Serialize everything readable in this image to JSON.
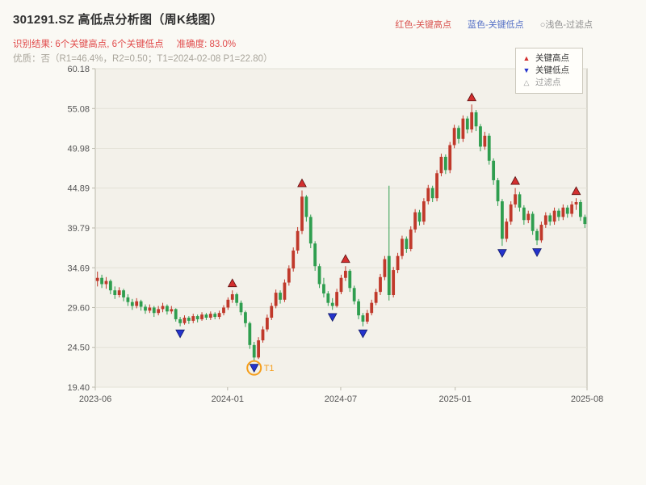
{
  "header": {
    "title": "301291.SZ 高低点分析图（周K线图）",
    "top_legend": [
      {
        "label": "红色-关键高点",
        "color": "#d9534f"
      },
      {
        "label": "蓝色-关键低点",
        "color": "#5470c6"
      },
      {
        "label": "○浅色-过滤点",
        "color": "#8f8f8f"
      }
    ],
    "result_line": "识别结果: 6个关键高点, 6个关键低点",
    "accuracy": "准确度: 83.0%",
    "quality_line": "优质：否（R1=46.4%，R2=0.50；T1=2024-02-08 P1=22.80）"
  },
  "chart_legend": {
    "high": "关键高点",
    "low": "关键低点",
    "filter": "过滤点"
  },
  "chart_data": {
    "type": "candlestick",
    "timeframe": "weekly",
    "title": "301291.SZ 高低点分析图（周K线图）",
    "ylim": [
      19.4,
      60.18
    ],
    "y_ticks": [
      19.4,
      24.5,
      29.6,
      34.69,
      39.79,
      44.89,
      49.98,
      55.08,
      60.18
    ],
    "x_ticks": [
      {
        "label": "2023-06",
        "index": 0
      },
      {
        "label": "2024-01",
        "index": 30.4
      },
      {
        "label": "2024-07",
        "index": 56.4
      },
      {
        "label": "2025-01",
        "index": 82.7
      },
      {
        "label": "2025-08",
        "index": 113
      }
    ],
    "grid": "horizontal",
    "colors": {
      "page_bg": "#faf9f4",
      "plot_bg": "#f3f1ea",
      "grid": "#e3e1d6",
      "axis": "#b9b6aa",
      "tick_text": "#555555",
      "up": "#c0392b",
      "down": "#2f9e4f",
      "marker_high": "#d32f2f",
      "marker_high_edge": "#5a0f0f",
      "marker_low": "#2433cc",
      "marker_low_edge": "#101a66",
      "filter_marker": "#9a9a9a",
      "t1": "#f59e1b"
    },
    "candles": [
      [
        33.0,
        34.2,
        32.3,
        33.4
      ],
      [
        33.4,
        33.8,
        32.1,
        32.6
      ],
      [
        32.6,
        33.5,
        32.0,
        33.0
      ],
      [
        33.0,
        33.2,
        31.3,
        31.8
      ],
      [
        31.8,
        32.3,
        30.7,
        31.2
      ],
      [
        31.2,
        32.2,
        30.9,
        31.8
      ],
      [
        31.8,
        32.0,
        30.4,
        30.9
      ],
      [
        30.9,
        31.3,
        29.8,
        30.3
      ],
      [
        30.3,
        30.7,
        29.3,
        29.8
      ],
      [
        29.8,
        30.8,
        29.5,
        30.4
      ],
      [
        30.4,
        30.6,
        29.2,
        29.7
      ],
      [
        29.7,
        30.0,
        28.8,
        29.2
      ],
      [
        29.2,
        30.0,
        28.9,
        29.6
      ],
      [
        29.6,
        29.8,
        28.4,
        28.9
      ],
      [
        28.9,
        29.8,
        28.6,
        29.4
      ],
      [
        29.4,
        30.2,
        29.0,
        29.8
      ],
      [
        29.8,
        30.0,
        28.7,
        29.1
      ],
      [
        29.1,
        29.8,
        28.8,
        29.4
      ],
      [
        29.4,
        29.5,
        27.8,
        28.1
      ],
      [
        28.1,
        28.4,
        27.2,
        27.6
      ],
      [
        27.6,
        28.6,
        27.4,
        28.3
      ],
      [
        28.3,
        28.5,
        27.5,
        27.9
      ],
      [
        27.9,
        28.8,
        27.6,
        28.5
      ],
      [
        28.5,
        28.7,
        27.7,
        28.1
      ],
      [
        28.1,
        29.0,
        27.9,
        28.7
      ],
      [
        28.7,
        28.9,
        28.0,
        28.3
      ],
      [
        28.3,
        29.1,
        28.0,
        28.8
      ],
      [
        28.8,
        29.0,
        28.1,
        28.4
      ],
      [
        28.4,
        29.2,
        28.1,
        28.9
      ],
      [
        28.9,
        29.9,
        28.6,
        29.6
      ],
      [
        29.6,
        30.9,
        29.3,
        30.6
      ],
      [
        30.6,
        31.8,
        30.2,
        31.3
      ],
      [
        31.3,
        31.5,
        29.8,
        30.2
      ],
      [
        30.2,
        30.5,
        28.6,
        29.0
      ],
      [
        29.0,
        29.2,
        27.1,
        27.6
      ],
      [
        27.6,
        27.8,
        24.3,
        24.8
      ],
      [
        24.8,
        25.2,
        22.8,
        23.2
      ],
      [
        23.2,
        25.8,
        23.0,
        25.4
      ],
      [
        25.4,
        27.2,
        25.1,
        26.8
      ],
      [
        26.8,
        28.7,
        26.5,
        28.3
      ],
      [
        28.3,
        30.2,
        28.0,
        29.8
      ],
      [
        29.8,
        31.9,
        29.5,
        31.5
      ],
      [
        31.5,
        31.8,
        30.1,
        30.6
      ],
      [
        30.6,
        33.2,
        30.3,
        32.8
      ],
      [
        32.8,
        35.0,
        32.4,
        34.6
      ],
      [
        34.6,
        37.3,
        34.2,
        36.9
      ],
      [
        36.9,
        39.9,
        36.5,
        39.4
      ],
      [
        39.4,
        44.6,
        39.0,
        43.8
      ],
      [
        43.8,
        44.0,
        40.6,
        41.2
      ],
      [
        41.2,
        41.5,
        37.2,
        37.8
      ],
      [
        37.8,
        38.1,
        34.3,
        34.9
      ],
      [
        34.9,
        35.2,
        32.1,
        32.6
      ],
      [
        32.6,
        33.4,
        30.9,
        31.4
      ],
      [
        31.4,
        31.7,
        29.8,
        30.2
      ],
      [
        30.2,
        30.8,
        29.3,
        29.8
      ],
      [
        29.8,
        32.0,
        29.6,
        31.6
      ],
      [
        31.6,
        33.8,
        31.3,
        33.4
      ],
      [
        33.4,
        34.9,
        33.0,
        34.3
      ],
      [
        34.3,
        34.5,
        31.6,
        32.1
      ],
      [
        32.1,
        32.4,
        30.0,
        30.4
      ],
      [
        30.4,
        30.7,
        28.1,
        28.6
      ],
      [
        28.6,
        28.9,
        27.2,
        27.8
      ],
      [
        27.8,
        29.3,
        27.5,
        28.9
      ],
      [
        28.9,
        30.6,
        28.6,
        30.2
      ],
      [
        30.2,
        32.0,
        29.9,
        31.6
      ],
      [
        31.6,
        33.9,
        31.2,
        33.5
      ],
      [
        33.5,
        36.2,
        33.1,
        35.8
      ],
      [
        36.2,
        45.2,
        30.5,
        31.2
      ],
      [
        31.2,
        34.8,
        30.9,
        34.4
      ],
      [
        34.4,
        36.6,
        34.0,
        36.2
      ],
      [
        36.2,
        38.8,
        35.8,
        38.4
      ],
      [
        38.4,
        38.7,
        36.6,
        37.1
      ],
      [
        37.1,
        40.0,
        36.8,
        39.6
      ],
      [
        39.6,
        42.2,
        39.2,
        41.8
      ],
      [
        41.8,
        42.1,
        40.1,
        40.6
      ],
      [
        40.6,
        43.6,
        40.2,
        43.2
      ],
      [
        43.2,
        45.3,
        42.8,
        44.9
      ],
      [
        44.9,
        45.2,
        43.1,
        43.6
      ],
      [
        43.6,
        47.2,
        43.2,
        46.8
      ],
      [
        46.8,
        49.3,
        46.4,
        48.9
      ],
      [
        48.9,
        49.2,
        46.7,
        47.2
      ],
      [
        47.2,
        50.8,
        46.8,
        50.4
      ],
      [
        50.4,
        53.0,
        50.0,
        52.6
      ],
      [
        52.6,
        52.9,
        50.6,
        51.2
      ],
      [
        51.2,
        54.2,
        50.8,
        53.8
      ],
      [
        53.8,
        54.1,
        51.9,
        52.4
      ],
      [
        52.4,
        55.6,
        52.0,
        54.6
      ],
      [
        54.6,
        54.9,
        52.2,
        52.8
      ],
      [
        52.8,
        53.1,
        49.6,
        50.2
      ],
      [
        50.2,
        52.1,
        49.8,
        51.6
      ],
      [
        51.6,
        51.9,
        47.9,
        48.4
      ],
      [
        48.4,
        48.7,
        45.3,
        45.9
      ],
      [
        45.9,
        46.2,
        42.6,
        43.2
      ],
      [
        43.2,
        43.5,
        37.5,
        38.4
      ],
      [
        38.4,
        41.0,
        38.0,
        40.6
      ],
      [
        40.6,
        43.2,
        40.2,
        42.8
      ],
      [
        42.8,
        44.9,
        42.4,
        44.1
      ],
      [
        44.1,
        44.4,
        41.9,
        42.4
      ],
      [
        42.4,
        42.7,
        40.2,
        40.8
      ],
      [
        40.8,
        42.0,
        40.4,
        41.6
      ],
      [
        41.6,
        41.9,
        38.9,
        39.4
      ],
      [
        39.4,
        39.7,
        37.6,
        38.2
      ],
      [
        38.2,
        40.6,
        37.9,
        40.2
      ],
      [
        40.2,
        41.8,
        39.8,
        41.4
      ],
      [
        41.4,
        41.7,
        40.1,
        40.6
      ],
      [
        40.6,
        42.4,
        40.2,
        42.0
      ],
      [
        42.0,
        42.3,
        40.7,
        41.2
      ],
      [
        41.2,
        42.8,
        40.8,
        42.4
      ],
      [
        42.4,
        42.7,
        41.1,
        41.6
      ],
      [
        41.6,
        43.2,
        41.2,
        42.8
      ],
      [
        42.8,
        43.6,
        42.1,
        43.1
      ],
      [
        43.1,
        43.4,
        40.7,
        41.2
      ],
      [
        41.2,
        41.5,
        39.8,
        40.3
      ]
    ],
    "key_highs": [
      31,
      47,
      57,
      86,
      96,
      110
    ],
    "key_lows": [
      19,
      36,
      54,
      61,
      93,
      101
    ],
    "t1": {
      "index": 36,
      "label": "T1",
      "date": "2024-02-08",
      "price": 22.8
    }
  }
}
